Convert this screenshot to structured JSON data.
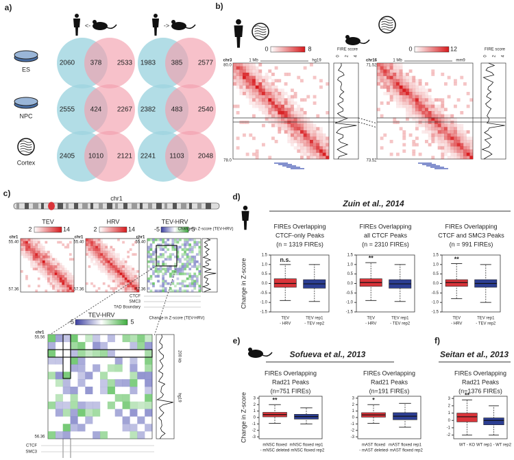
{
  "panel_a": {
    "label": "a)",
    "arrows": [
      "<-",
      "->"
    ],
    "rows": [
      {
        "name": "ES",
        "left": [
          2060,
          378,
          2533
        ],
        "right": [
          1983,
          385,
          2577
        ]
      },
      {
        "name": "NPC",
        "left": [
          2555,
          424,
          2267
        ],
        "right": [
          2382,
          483,
          2540
        ]
      },
      {
        "name": "Cortex",
        "left": [
          2405,
          1010,
          2121
        ],
        "right": [
          2241,
          1103,
          2048
        ]
      }
    ]
  },
  "panel_b": {
    "label": "b)",
    "maps": [
      {
        "scale": [
          0,
          8
        ],
        "fire_label": "FIRE score",
        "fire_ticks": [
          0,
          2,
          4
        ],
        "scale_bar": "1 Mb",
        "genome": "hg19",
        "chr": "chr3",
        "start": "80.0",
        "end": "78.0"
      },
      {
        "scale": [
          0,
          12
        ],
        "fire_label": "FIRE score",
        "fire_ticks": [
          0,
          2,
          4
        ],
        "scale_bar": "1 Mb",
        "genome": "mm9",
        "chr": "chr16",
        "start": "71.52",
        "end": "73.52"
      }
    ]
  },
  "panel_c": {
    "label": "c)",
    "chromosome": "chr1",
    "maps": [
      {
        "title": "TEV",
        "scale": [
          2,
          14
        ],
        "chr": "chr1",
        "start": "55.40",
        "end": "57.36"
      },
      {
        "title": "HRV",
        "scale": [
          2,
          14
        ],
        "chr": "chr1",
        "start": "55.40",
        "end": "57.36"
      },
      {
        "title": "TEV-HRV",
        "scale": [
          -5,
          5
        ],
        "chr": "chr1",
        "start": "55.40",
        "end": "57.36"
      }
    ],
    "track_title": "Change in Z-score (TEV-HRV)",
    "tracks": [
      "CTCF",
      "SMC3",
      "TAD Boundary"
    ],
    "zoom": {
      "title": "TEV-HRV",
      "scale": [
        -5,
        5
      ],
      "chr": "chr1",
      "start": "55.56",
      "end": "56.36",
      "track_title": "Change in Z-score (TEV-HRV)",
      "size": "200 kb",
      "genome": "hg19",
      "tracks": [
        "CTCF",
        "SMC3"
      ]
    }
  },
  "panel_d": {
    "label": "d)",
    "study": "Zuin et al., 2014",
    "ylabel": "Change in Z-score",
    "ylim": [
      -1.5,
      1.5
    ],
    "yticks": [
      1.5,
      {
        "value": 1,
        "label": "1.0"
      },
      0.5,
      {
        "value": 0,
        "label": "0.0"
      },
      -0.5,
      {
        "value": -1,
        "label": "-1.0"
      },
      -1.5
    ],
    "plots": [
      {
        "title": [
          "FIREs Overlapping",
          "CTCF-only Peaks",
          "(n = 1319 FIREs)"
        ],
        "annotation": "n.s.",
        "boxes": [
          {
            "category": [
              "TEV",
              "- HRV"
            ],
            "color": "#d9343a",
            "stats": [
              -0.9,
              -0.2,
              0.0,
              0.25,
              1.0
            ]
          },
          {
            "category": [
              "TEV rep1",
              "- TEV rep2"
            ],
            "color": "#2c3e93",
            "stats": [
              -0.95,
              -0.25,
              -0.02,
              0.2,
              1.0
            ]
          }
        ]
      },
      {
        "title": [
          "FIREs Overlapping",
          "all CTCF Peaks",
          "(n = 2310 FIREs)"
        ],
        "annotation": "**",
        "boxes": [
          {
            "category": [
              "TEV",
              "- HRV"
            ],
            "color": "#d9343a",
            "stats": [
              -0.9,
              -0.15,
              0.05,
              0.25,
              1.1
            ]
          },
          {
            "category": [
              "TEV rep1",
              "- TEV rep2"
            ],
            "color": "#2c3e93",
            "stats": [
              -0.95,
              -0.25,
              -0.02,
              0.2,
              1.0
            ]
          }
        ]
      },
      {
        "title": [
          "FIREs Overlapping",
          "CTCF and SMC3 Peaks",
          "(n = 991 FIREs)"
        ],
        "annotation": "**",
        "boxes": [
          {
            "category": [
              "TEV",
              "- HRV"
            ],
            "color": "#d9343a",
            "stats": [
              -0.8,
              -0.15,
              0.05,
              0.2,
              1.05
            ]
          },
          {
            "category": [
              "TEV rep1",
              "- TEV rep2"
            ],
            "color": "#2c3e93",
            "stats": [
              -1.0,
              -0.2,
              0.0,
              0.2,
              1.0
            ]
          }
        ]
      }
    ]
  },
  "panel_e": {
    "label": "e)",
    "study": "Sofueva et al., 2013",
    "ylabel": "Change in Z-score",
    "ylim": [
      -3.3,
      3.3
    ],
    "yticks": [
      3,
      2,
      1,
      0,
      -1,
      -2,
      -3
    ],
    "plots": [
      {
        "title": [
          "FIREs Overlapping",
          "Rad21 Peaks",
          "(n=751 FIREs)"
        ],
        "annotation": "**",
        "boxes": [
          {
            "category": [
              "mNSC floxed",
              "- mNSC deleted"
            ],
            "color": "#d9343a",
            "stats": [
              -0.9,
              0.1,
              0.45,
              0.8,
              2.0
            ]
          },
          {
            "category": [
              "mNSC floxed rep1",
              "- mNSC floxed rep2"
            ],
            "color": "#2c3e93",
            "stats": [
              -1.0,
              -0.25,
              0.15,
              0.5,
              1.5
            ]
          }
        ]
      },
      {
        "title": [
          "FIREs Overlapping",
          "Rad21 Peaks",
          "(n=191 FIREs)"
        ],
        "annotation": "*",
        "boxes": [
          {
            "category": [
              "mAST floxed",
              "- mAST deleted"
            ],
            "color": "#d9343a",
            "stats": [
              -0.9,
              0.05,
              0.4,
              0.75,
              2.0
            ]
          },
          {
            "category": [
              "mAST floxed rep1",
              "- mAST floxed rep2"
            ],
            "color": "#2c3e93",
            "stats": [
              -1.5,
              -0.35,
              0.2,
              0.75,
              2.2
            ]
          }
        ]
      }
    ]
  },
  "panel_f": {
    "label": "f)",
    "study": "Seitan et al., 2013",
    "ylim": [
      -2.5,
      3.3
    ],
    "yticks": [
      3,
      2,
      1,
      0,
      -1,
      -2
    ],
    "plots": [
      {
        "title": [
          "FIREs Overlapping",
          "Rad21 Peaks",
          "(n=1376 FIREs)"
        ],
        "annotation": "**",
        "boxes": [
          {
            "category": [
              "WT - KO"
            ],
            "color": "#d9343a",
            "stats": [
              -2.0,
              -0.2,
              0.5,
              1.0,
              2.8
            ]
          },
          {
            "category": [
              "WT rep1 - WT rep2"
            ],
            "color": "#2c3e93",
            "stats": [
              -2.0,
              -0.6,
              0.0,
              0.35,
              2.0
            ]
          }
        ]
      }
    ]
  }
}
